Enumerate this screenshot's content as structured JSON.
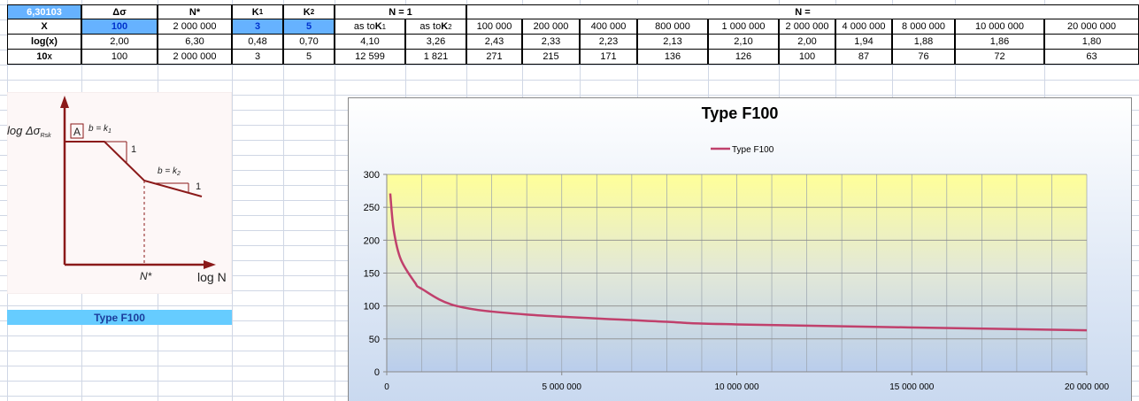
{
  "table": {
    "header": [
      "6,30103",
      "Δσ",
      "N*",
      {
        "text": "K",
        "sub": "1"
      },
      {
        "text": "K",
        "sub": "2"
      },
      "N = 1",
      "N ="
    ],
    "rows": [
      [
        "X",
        "100",
        "2 000 000",
        "3",
        "5",
        {
          "text": "as to ",
          "strong": "K",
          "sub": "1"
        },
        {
          "text": "as to ",
          "strong": "K",
          "sub": "2"
        },
        "100 000",
        "200 000",
        "400 000",
        "800 000",
        "1 000 000",
        "2 000 000",
        "4 000 000",
        "8 000 000",
        "10 000 000",
        "20 000 000"
      ],
      [
        "log(x)",
        "2,00",
        "6,30",
        "0,48",
        "0,70",
        "4,10",
        "3,26",
        "2,43",
        "2,33",
        "2,23",
        "2,13",
        "2,10",
        "2,00",
        "1,94",
        "1,88",
        "1,86",
        "1,80"
      ],
      [
        {
          "text": "10",
          "sup": "X"
        },
        "100",
        "2 000 000",
        "3",
        "5",
        "12 599",
        "1 821",
        "271",
        "215",
        "171",
        "136",
        "126",
        "100",
        "87",
        "76",
        "72",
        "63"
      ]
    ]
  },
  "sketch": {
    "y_label": "log Δσ",
    "y_label_sub": "Rsk",
    "panel": "A",
    "slope1": "b = k",
    "slope1_sub": "1",
    "run1": "1",
    "slope2": "b = k",
    "slope2_sub": "2",
    "run2": "1",
    "x_mark": "N*",
    "x_label": "log N"
  },
  "sheet_label": "Type F100",
  "chart_data": {
    "type": "line",
    "title": "Type F100",
    "x": [
      100000,
      200000,
      400000,
      800000,
      1000000,
      2000000,
      4000000,
      8000000,
      10000000,
      20000000
    ],
    "series": [
      {
        "name": "Type F100",
        "color": "#c0406c",
        "values": [
          271,
          215,
          171,
          136,
          126,
          100,
          87,
          76,
          72,
          63
        ]
      }
    ],
    "xlim": [
      0,
      20000000
    ],
    "xticks": [
      0,
      {
        "value": 5000000,
        "label": "5 000 000"
      },
      {
        "value": 10000000,
        "label": "10 000 000"
      },
      {
        "value": 15000000,
        "label": "15 000 000"
      },
      {
        "value": 20000000,
        "label": "20 000 000"
      }
    ],
    "ylim": [
      0,
      300
    ],
    "yticks": [
      0,
      50,
      100,
      150,
      200,
      250,
      300
    ],
    "x_minor_grid": 1000000,
    "grid": true,
    "legend": "top"
  }
}
